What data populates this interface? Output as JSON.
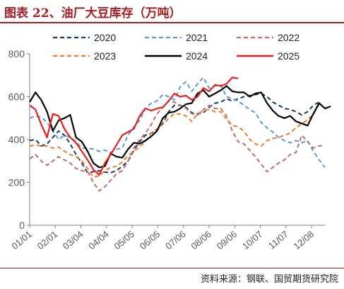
{
  "figure_title": "图表 22、油厂大豆库存（万吨）",
  "source": "资料来源：钢联、国贸期货研究院",
  "chart_data": {
    "type": "line",
    "title": "",
    "xlabel": "",
    "ylabel": "",
    "ylim": [
      0,
      800
    ],
    "yticks": [
      0,
      200,
      400,
      600,
      800
    ],
    "xlim": [
      1,
      52
    ],
    "xtick_labels": [
      "01/01",
      "02/01",
      "03/04",
      "04/04",
      "05/05",
      "06/05",
      "07/06",
      "08/06",
      "09/06",
      "10/07",
      "11/07",
      "12/08"
    ],
    "xtick_positions": [
      1,
      5.43,
      9.86,
      14.29,
      18.71,
      23.14,
      27.57,
      32,
      36.43,
      40.86,
      45.29,
      49.71
    ],
    "grid": false,
    "legend_position": "top",
    "series": [
      {
        "name": "2020",
        "color": "#1f3864",
        "dash": "dash",
        "values": [
          395,
          400,
          370,
          380,
          410,
          440,
          420,
          380,
          330,
          290,
          245,
          250,
          255,
          248,
          245,
          255,
          275,
          300,
          350,
          390,
          420,
          430,
          445,
          475,
          530,
          560,
          560,
          550,
          525,
          520,
          525,
          550,
          570,
          575,
          590,
          580,
          590,
          600,
          605,
          610,
          615,
          600,
          575,
          560,
          545,
          540,
          530,
          515,
          530,
          560,
          575
        ]
      },
      {
        "name": "2021",
        "color": "#5b9bd5",
        "dash": "dash",
        "values": [
          500,
          510,
          505,
          480,
          440,
          400,
          420,
          410,
          390,
          360,
          360,
          355,
          345,
          350,
          340,
          355,
          360,
          420,
          460,
          490,
          545,
          570,
          580,
          610,
          600,
          585,
          645,
          670,
          625,
          660,
          690,
          640,
          650,
          655,
          600,
          590,
          580,
          560,
          540,
          525,
          480,
          455,
          435,
          410,
          395,
          385,
          395,
          385,
          395,
          345,
          305,
          270
        ]
      },
      {
        "name": "2022",
        "color": "#c9696b",
        "dash": "dash",
        "values": [
          310,
          330,
          300,
          280,
          300,
          320,
          305,
          290,
          265,
          255,
          250,
          200,
          160,
          180,
          210,
          240,
          255,
          300,
          360,
          400,
          430,
          470,
          520,
          550,
          580,
          575,
          560,
          545,
          520,
          515,
          540,
          560,
          545,
          545,
          510,
          440,
          390,
          380,
          350,
          320,
          285,
          250,
          270,
          290,
          305,
          330,
          340,
          420,
          390,
          360,
          370,
          375
        ]
      },
      {
        "name": "2023",
        "color": "#ed7d31",
        "dash": "dash",
        "values": [
          370,
          375,
          370,
          370,
          360,
          365,
          345,
          330,
          320,
          300,
          265,
          225,
          230,
          255,
          270,
          275,
          295,
          325,
          345,
          365,
          390,
          430,
          450,
          470,
          500,
          520,
          520,
          510,
          485,
          520,
          535,
          540,
          530,
          530,
          495,
          465,
          460,
          440,
          400,
          380,
          370,
          395,
          405,
          410,
          420,
          430,
          455,
          475,
          490,
          520,
          565
        ]
      },
      {
        "name": "2024",
        "color": "#000000",
        "dash": "solid",
        "values": [
          575,
          620,
          585,
          530,
          440,
          490,
          500,
          515,
          410,
          390,
          345,
          290,
          270,
          275,
          335,
          320,
          315,
          355,
          385,
          380,
          395,
          415,
          440,
          500,
          525,
          530,
          545,
          565,
          570,
          615,
          630,
          600,
          615,
          630,
          650,
          625,
          620,
          620,
          600,
          615,
          620,
          570,
          535,
          510,
          500,
          510,
          485,
          475,
          465,
          520,
          570,
          545,
          555
        ]
      },
      {
        "name": "2025",
        "color": "#e8201c",
        "dash": "solid",
        "values": [
          560,
          540,
          470,
          410,
          520,
          510,
          450,
          410,
          385,
          345,
          305,
          260,
          235,
          290,
          330,
          375,
          420,
          435,
          450,
          510,
          545,
          535,
          545,
          550,
          580,
          615,
          600,
          605,
          585,
          600,
          640,
          625,
          655,
          650,
          660,
          690,
          685
        ]
      }
    ]
  }
}
